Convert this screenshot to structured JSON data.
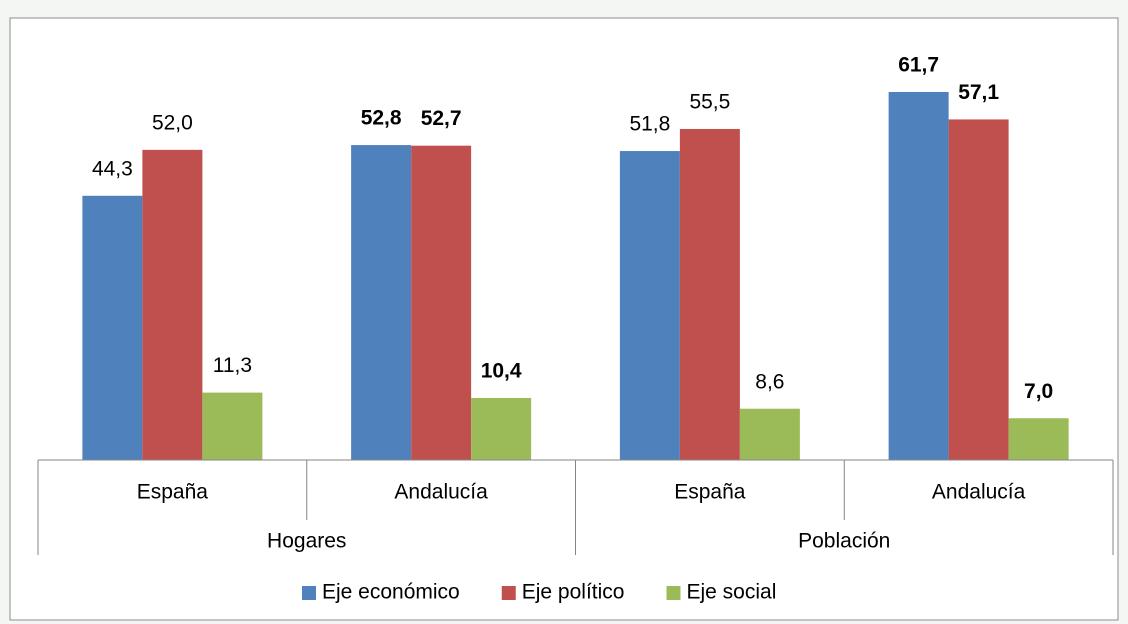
{
  "chart_data": {
    "type": "bar",
    "groups": [
      "Hogares",
      "Población"
    ],
    "categories": [
      "España",
      "Andalucía",
      "España",
      "Andalucía"
    ],
    "category_group": [
      0,
      0,
      1,
      1
    ],
    "bold_value_labels": [
      false,
      true,
      false,
      true
    ],
    "series": [
      {
        "name": "Eje económico",
        "color": "#4f81bd",
        "values": [
          44.3,
          52.8,
          51.8,
          61.7
        ],
        "value_labels": [
          "44,3",
          "52,8",
          "51,8",
          "61,7"
        ]
      },
      {
        "name": "Eje político",
        "color": "#c0504d",
        "values": [
          52.0,
          52.7,
          55.5,
          57.1
        ],
        "value_labels": [
          "52,0",
          "52,7",
          "55,5",
          "57,1"
        ]
      },
      {
        "name": "Eje social",
        "color": "#9bbb59",
        "values": [
          11.3,
          10.4,
          8.6,
          7.0
        ],
        "value_labels": [
          "11,3",
          "10,4",
          "8,6",
          "7,0"
        ]
      }
    ],
    "legend": "bottom"
  }
}
